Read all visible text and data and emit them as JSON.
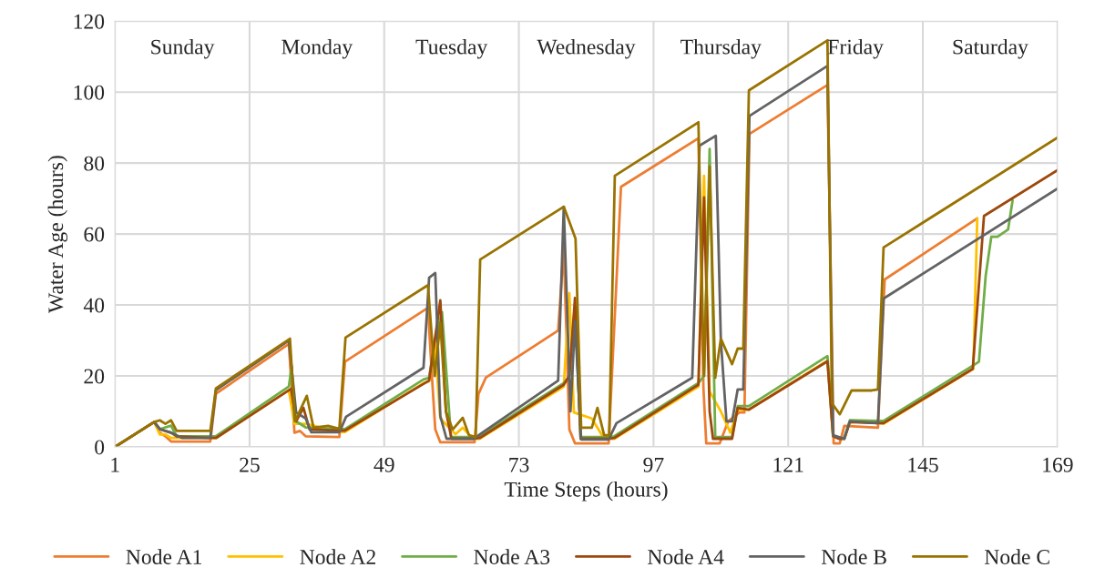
{
  "chart_data": {
    "type": "line",
    "xlabel": "Time Steps (hours)",
    "ylabel": "Water Age (hours)",
    "xlim": [
      1,
      169
    ],
    "xticks": [
      1,
      25,
      49,
      73,
      97,
      121,
      145,
      169
    ],
    "ylim": [
      0,
      120
    ],
    "yticks": [
      0,
      20,
      40,
      60,
      80,
      100,
      120
    ],
    "grid": true,
    "legend": "bottom",
    "line_style": "solid",
    "marker": "none",
    "annotations": [
      "Sunday",
      "Monday",
      "Tuesday",
      "Wednesday",
      "Thursday",
      "Friday",
      "Saturday"
    ],
    "series": [
      {
        "name": "Node A1",
        "color": "#ed7d31",
        "x": [
          1,
          8,
          9,
          10,
          11,
          18,
          19,
          32,
          33,
          34,
          35,
          41,
          42,
          56.8,
          57.5,
          58.1,
          59,
          65.1,
          65.8,
          67.1,
          80,
          81,
          82,
          83,
          89,
          91.2,
          105,
          105.9,
          106.4,
          108.8,
          110.3,
          112.3,
          113.2,
          114.1,
          128,
          129.1,
          130.2,
          131,
          137,
          138.2,
          154.7
        ],
        "values": [
          0,
          7,
          4,
          3,
          1.5,
          1.5,
          15,
          29,
          4,
          4.5,
          3,
          2.8,
          24,
          39.2,
          20,
          4.9,
          1.3,
          1.3,
          14.9,
          19.5,
          32.8,
          56,
          4.9,
          1,
          1,
          73.3,
          87,
          16.4,
          1,
          1,
          7.2,
          9.7,
          9.7,
          88.2,
          102,
          1,
          1,
          5.9,
          5.4,
          47.2,
          64.4
        ]
      },
      {
        "name": "Node A2",
        "color": "#ffc000",
        "x": [
          1,
          8,
          9,
          10,
          11,
          18,
          19,
          32,
          33,
          35,
          41,
          42,
          56,
          57,
          58,
          59,
          61.7,
          63,
          64.5,
          65,
          66,
          81,
          82,
          82.8,
          86,
          88,
          89,
          90,
          105,
          106,
          107,
          109,
          110.7,
          112,
          114,
          128,
          129,
          131,
          132,
          137,
          138,
          154,
          154.7
        ],
        "values": [
          0,
          7,
          3.5,
          3.5,
          2.5,
          2.5,
          2.5,
          16,
          6.5,
          6.5,
          4.2,
          4.2,
          18,
          18.5,
          30,
          8,
          3.6,
          5.4,
          2.8,
          2.3,
          2.3,
          17,
          43.3,
          9.7,
          8,
          2.8,
          2.3,
          2.3,
          17,
          76.4,
          15.6,
          10,
          4,
          10.5,
          10.5,
          24.3,
          3,
          2.3,
          7,
          6.7,
          6.5,
          22,
          64.4
        ]
      },
      {
        "name": "Node A3",
        "color": "#70ad47",
        "x": [
          1,
          8,
          9,
          11,
          12,
          18,
          19,
          32,
          32.5,
          33,
          35,
          41,
          42,
          56,
          57,
          58,
          59.3,
          60.9,
          65,
          66,
          81,
          82,
          83,
          84,
          89,
          90,
          105,
          106,
          107,
          108,
          111,
          112,
          114,
          128,
          129,
          130,
          131,
          132,
          137,
          138,
          154,
          155,
          156.2,
          157.2,
          158.3,
          160.2,
          161
        ],
        "values": [
          0,
          7,
          5,
          6,
          3,
          3,
          3,
          17,
          22.8,
          7.5,
          5.5,
          5,
          5,
          19,
          19.5,
          30,
          38,
          2.8,
          2.8,
          3,
          18,
          20,
          40,
          2.8,
          2.8,
          3,
          18,
          20,
          84,
          2.8,
          2.8,
          11.5,
          11.5,
          25.6,
          3,
          2.5,
          2.5,
          7.5,
          7.3,
          7.3,
          23,
          24,
          48.2,
          59.2,
          59.2,
          61.3,
          69.5
        ]
      },
      {
        "name": "Node A4",
        "color": "#9e480e",
        "x": [
          1,
          8,
          9,
          11,
          12,
          18,
          19,
          32.4,
          33.3,
          34.6,
          35.7,
          41.5,
          42,
          57,
          58,
          59,
          60,
          61,
          65,
          66,
          81,
          82,
          83,
          84,
          89,
          90,
          105,
          106,
          107,
          107.6,
          111,
          112,
          114,
          128,
          129,
          130,
          131,
          132,
          137,
          138,
          153.9,
          155.9,
          169
        ],
        "values": [
          0,
          7,
          5,
          4,
          3,
          2.5,
          2.5,
          16.4,
          7.2,
          11,
          4.9,
          4.6,
          4.6,
          18.7,
          30,
          41.3,
          10,
          2.3,
          2.3,
          2.5,
          17.5,
          20,
          42,
          2.3,
          2.3,
          2.5,
          17.5,
          70.3,
          10,
          2.3,
          2.3,
          11,
          10.5,
          24.1,
          3,
          2.3,
          2.3,
          7,
          6.7,
          6.7,
          22,
          65.1,
          78
        ]
      },
      {
        "name": "Node B",
        "color": "#636363",
        "x": [
          1,
          8,
          9,
          11,
          13,
          18,
          19,
          32,
          33.3,
          35,
          36,
          41,
          42.2,
          56,
          57,
          58.1,
          59,
          60.1,
          65,
          66,
          80,
          81,
          82.2,
          83,
          84.1,
          89,
          90.4,
          103.9,
          105.2,
          108.1,
          109,
          110,
          111,
          112,
          113,
          114.1,
          128,
          129,
          131,
          132,
          137,
          138,
          169
        ],
        "values": [
          0,
          7,
          5,
          4,
          2.5,
          2.5,
          16,
          30,
          9.7,
          8,
          4.1,
          4.1,
          8.5,
          22.3,
          47.7,
          49,
          8.7,
          2.3,
          2.3,
          3.5,
          18.7,
          67.7,
          10,
          35.4,
          2.1,
          2.1,
          6.7,
          19.5,
          84.9,
          87.7,
          30,
          7.2,
          7.2,
          16.2,
          16.2,
          93.3,
          107.4,
          3.3,
          2.3,
          7.2,
          6.7,
          41.8,
          72.8
        ]
      },
      {
        "name": "Node C",
        "color": "#997300",
        "x": [
          1,
          8,
          9,
          10,
          11,
          12,
          18,
          19,
          32.2,
          33.1,
          35.2,
          36.4,
          39,
          41,
          42.1,
          56.8,
          58,
          59,
          60,
          61.2,
          63,
          64.1,
          65.3,
          66.1,
          81,
          83.1,
          84.1,
          86,
          87,
          88.2,
          89.1,
          90.1,
          105,
          106,
          107,
          108,
          109,
          111,
          112,
          113,
          114,
          128,
          128.8,
          130.2,
          132.3,
          135.9,
          137,
          138,
          169
        ],
        "values": [
          0,
          7,
          7.5,
          6.5,
          7.5,
          4.5,
          4.5,
          16.5,
          30.5,
          7.2,
          14.4,
          5.4,
          5.9,
          5.1,
          30.8,
          45.6,
          20,
          35,
          10,
          4.9,
          8.2,
          3.3,
          2.8,
          52.8,
          67.7,
          58.7,
          5.4,
          5.4,
          11,
          3.3,
          3.3,
          76.4,
          91.5,
          20,
          79,
          19.5,
          30.5,
          23.3,
          27.7,
          27.7,
          100.5,
          114.6,
          12.3,
          9.2,
          15.9,
          15.9,
          16.2,
          56.2,
          87.2
        ]
      }
    ]
  }
}
